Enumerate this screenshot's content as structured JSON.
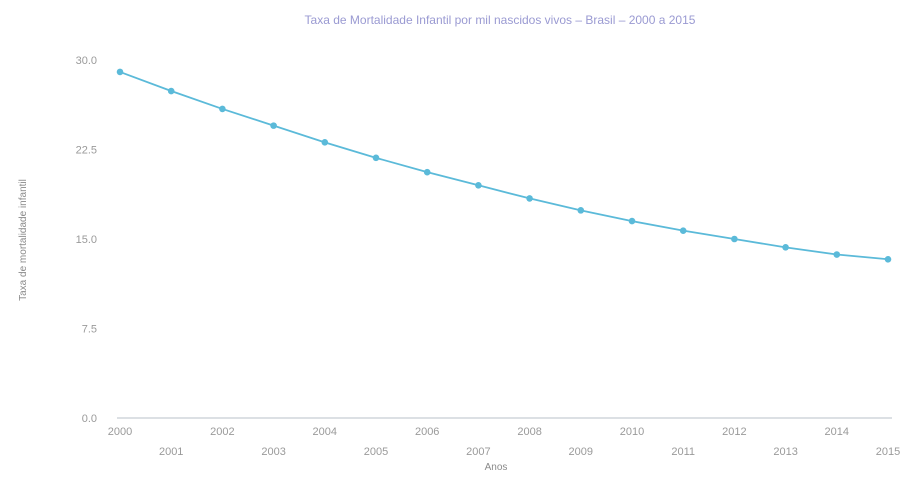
{
  "chart_data": {
    "type": "line",
    "title": "Taxa de Mortalidade Infantil por mil nascidos vivos – Brasil – 2000 a 2015",
    "xlabel": "Anos",
    "ylabel": "Taxa de mortalidade infantil",
    "x": [
      "2000",
      "2001",
      "2002",
      "2003",
      "2004",
      "2005",
      "2006",
      "2007",
      "2008",
      "2009",
      "2010",
      "2011",
      "2012",
      "2013",
      "2014",
      "2015"
    ],
    "y_ticks": [
      "0.0",
      "7.5",
      "15.0",
      "22.5",
      "30.0"
    ],
    "ylim": [
      0,
      30
    ],
    "grid": false,
    "legend": "none",
    "series": [
      {
        "values": [
          29.0,
          27.4,
          25.9,
          24.5,
          23.1,
          21.8,
          20.6,
          19.5,
          18.4,
          17.4,
          16.5,
          15.7,
          15.0,
          14.3,
          13.7,
          13.3
        ],
        "color": "#5bbad9"
      }
    ]
  }
}
